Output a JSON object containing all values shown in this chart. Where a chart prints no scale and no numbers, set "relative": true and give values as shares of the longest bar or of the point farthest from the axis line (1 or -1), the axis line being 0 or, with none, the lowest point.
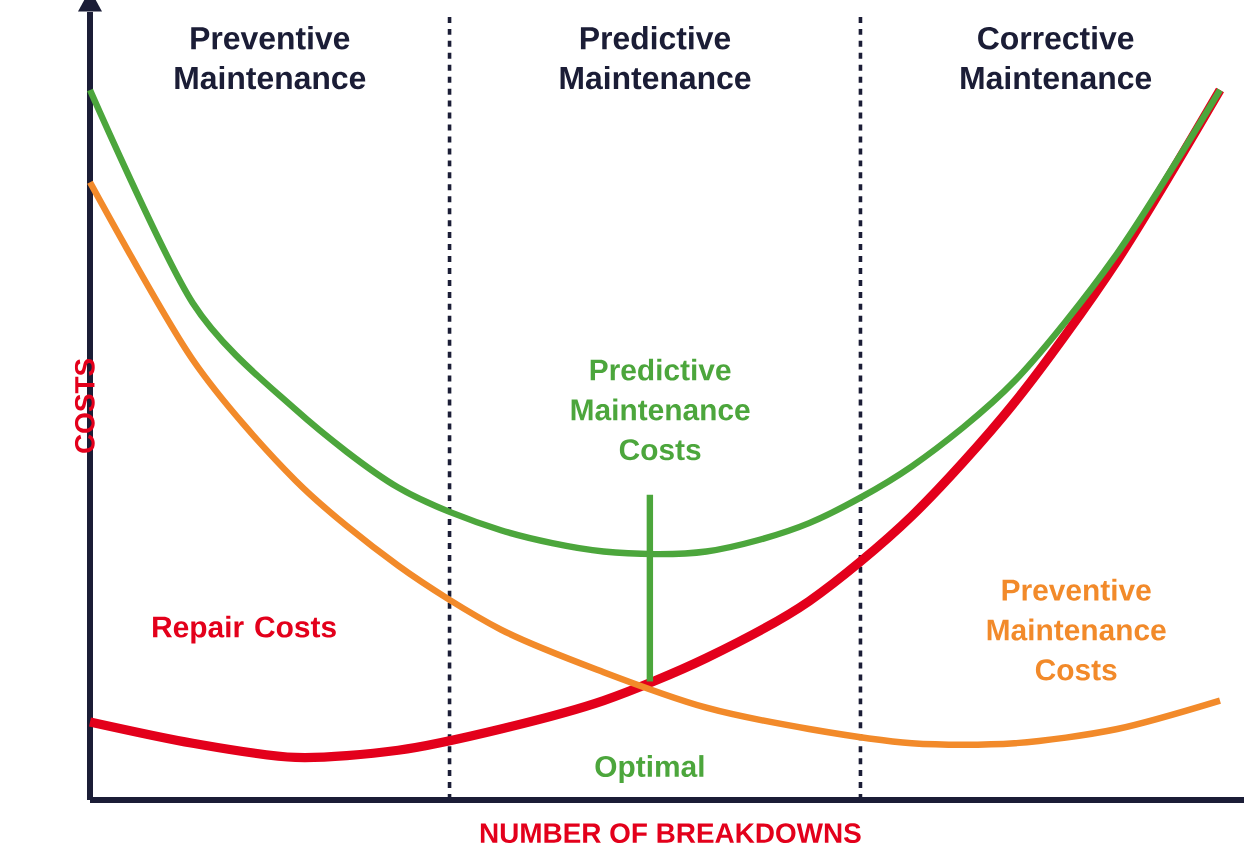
{
  "chart_data": {
    "type": "line",
    "relative": true,
    "xlabel": "NUMBER OF BREAKDOWNS",
    "ylabel": "COSTS",
    "categories": [
      null,
      null,
      null,
      null,
      null,
      null,
      null,
      null,
      null,
      null,
      null,
      null
    ],
    "series": [
      {
        "name": "Repair Costs",
        "color": "#e3001b",
        "values": [
          0.11,
          0.08,
          0.06,
          0.07,
          0.1,
          0.14,
          0.2,
          0.28,
          0.4,
          0.56,
          0.76,
          1.0
        ]
      },
      {
        "name": "Predictive Maintenance Costs",
        "color": "#4ca63c",
        "values": [
          1.0,
          0.7,
          0.55,
          0.44,
          0.38,
          0.35,
          0.35,
          0.39,
          0.47,
          0.59,
          0.77,
          1.0
        ]
      },
      {
        "name": "Preventive Maintenance Costs",
        "color": "#f28a2a",
        "values": [
          0.87,
          0.62,
          0.45,
          0.33,
          0.24,
          0.18,
          0.13,
          0.1,
          0.08,
          0.08,
          0.1,
          0.14
        ]
      }
    ],
    "annotations": [
      "Preventive Maintenance",
      "Predictive Maintenance",
      "Corrective Maintenance",
      "Optimal"
    ],
    "legend": false
  }
}
